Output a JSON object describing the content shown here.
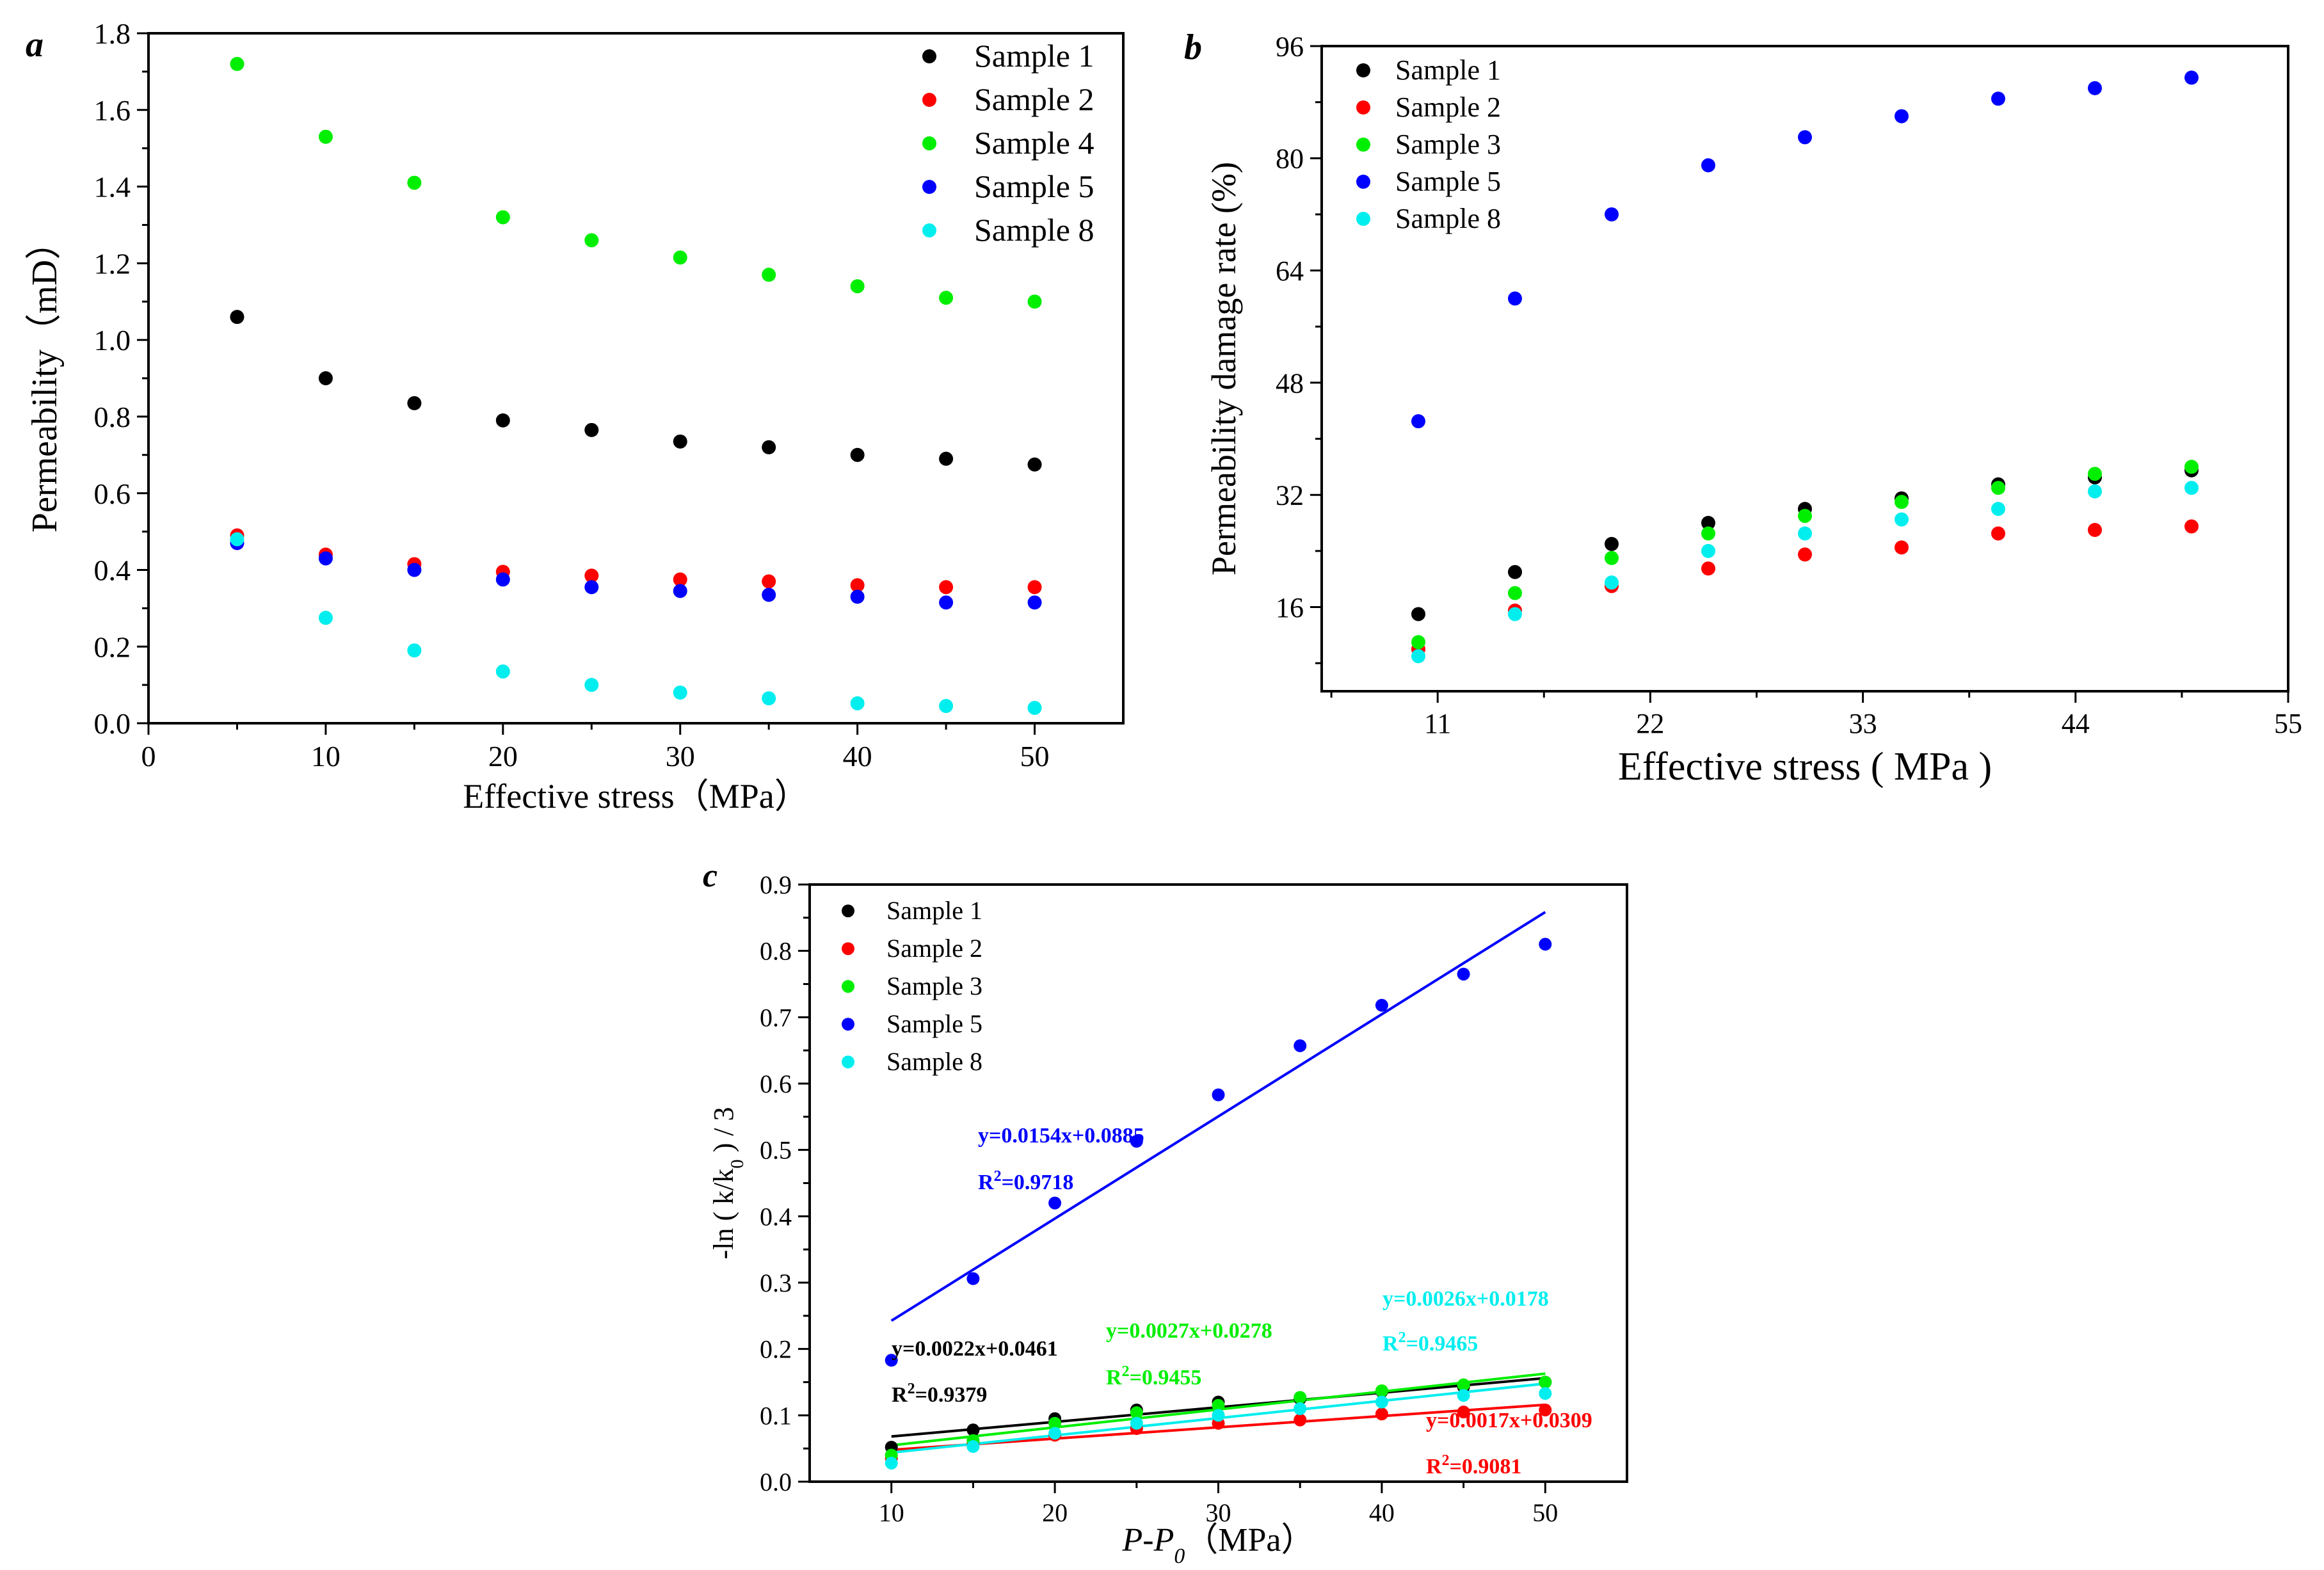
{
  "colors": {
    "Sample 1": "#000000",
    "Sample 2": "#ff0000",
    "Sample 3": "#00ee00",
    "Sample 4": "#00ee00",
    "Sample 5": "#0000ff",
    "Sample 8": "#00eeee"
  },
  "chart_data": [
    {
      "panel_label": "a",
      "type": "scatter",
      "xlabel": "Effective stress（MPa）",
      "ylabel": "Permeability（mD）",
      "xlim": [
        0,
        55
      ],
      "ylim": [
        0,
        1.8
      ],
      "xticks": [
        0,
        10,
        20,
        30,
        40,
        50
      ],
      "yticks": [
        "0.0",
        "0.2",
        "0.4",
        "0.6",
        "0.8",
        "1.0",
        "1.2",
        "1.4",
        "1.6",
        "1.8"
      ],
      "legend_position": "top-right",
      "x": [
        5,
        10,
        15,
        20,
        25,
        30,
        35,
        40,
        45,
        50
      ],
      "series": [
        {
          "name": "Sample 1",
          "values": [
            1.06,
            0.9,
            0.835,
            0.79,
            0.765,
            0.735,
            0.72,
            0.7,
            0.69,
            0.675
          ]
        },
        {
          "name": "Sample 2",
          "values": [
            0.49,
            0.44,
            0.415,
            0.395,
            0.385,
            0.375,
            0.37,
            0.36,
            0.355,
            0.355
          ]
        },
        {
          "name": "Sample 4",
          "values": [
            1.72,
            1.53,
            1.41,
            1.32,
            1.26,
            1.215,
            1.17,
            1.14,
            1.11,
            1.1
          ]
        },
        {
          "name": "Sample 5",
          "values": [
            0.47,
            0.43,
            0.4,
            0.375,
            0.355,
            0.345,
            0.335,
            0.33,
            0.315,
            0.315
          ]
        },
        {
          "name": "Sample 8",
          "values": [
            0.48,
            0.275,
            0.19,
            0.135,
            0.1,
            0.08,
            0.065,
            0.052,
            0.045,
            0.04
          ]
        }
      ]
    },
    {
      "panel_label": "b",
      "type": "scatter",
      "xlabel": "Effective stress ( MPa )",
      "ylabel": "Permeability damage rate (%)",
      "xlim": [
        5,
        55
      ],
      "ylim": [
        4,
        96
      ],
      "xticks": [
        11,
        22,
        33,
        44,
        55
      ],
      "yticks": [
        16,
        32,
        48,
        64,
        80,
        96
      ],
      "legend_position": "top-left",
      "x": [
        10,
        15,
        20,
        25,
        30,
        35,
        40,
        45,
        50
      ],
      "series": [
        {
          "name": "Sample 1",
          "values": [
            15,
            21,
            25,
            28,
            30,
            31.5,
            33.5,
            34.5,
            35.5
          ]
        },
        {
          "name": "Sample 2",
          "values": [
            10,
            15.5,
            19,
            21.5,
            23.5,
            24.5,
            26.5,
            27,
            27.5
          ]
        },
        {
          "name": "Sample 3",
          "values": [
            11,
            18,
            23,
            26.5,
            29,
            31,
            33,
            35,
            36
          ]
        },
        {
          "name": "Sample 5",
          "values": [
            42.5,
            60,
            72,
            79,
            83,
            86,
            88.5,
            90,
            91.5
          ]
        },
        {
          "name": "Sample 8",
          "values": [
            9,
            15,
            19.5,
            24,
            26.5,
            28.5,
            30,
            32.5,
            33
          ]
        }
      ]
    },
    {
      "panel_label": "c",
      "type": "scatter",
      "xlabel": "P-P0（MPa）",
      "ylabel": "-ln ( k/k0 ) / 3",
      "xlim": [
        5,
        55
      ],
      "ylim": [
        0,
        0.9
      ],
      "xticks": [
        10,
        20,
        30,
        40,
        50
      ],
      "yticks": [
        "0.0",
        "0.1",
        "0.2",
        "0.3",
        "0.4",
        "0.5",
        "0.6",
        "0.7",
        "0.8",
        "0.9"
      ],
      "legend_position": "top-left",
      "x": [
        10,
        15,
        20,
        25,
        30,
        35,
        40,
        45,
        50
      ],
      "series": [
        {
          "name": "Sample 1",
          "values": [
            0.052,
            0.078,
            0.095,
            0.108,
            0.12,
            0.125,
            0.136,
            0.143,
            0.15
          ],
          "fit": {
            "slope": 0.0022,
            "intercept": 0.0461,
            "equation": "y=0.0022x+0.0461",
            "r2": "0.9379"
          }
        },
        {
          "name": "Sample 2",
          "values": [
            0.035,
            0.058,
            0.07,
            0.08,
            0.088,
            0.093,
            0.102,
            0.105,
            0.108
          ],
          "fit": {
            "slope": 0.0017,
            "intercept": 0.0309,
            "equation": "y=0.0017x+0.0309",
            "r2": "0.9081"
          }
        },
        {
          "name": "Sample 3",
          "values": [
            0.04,
            0.062,
            0.088,
            0.104,
            0.115,
            0.127,
            0.137,
            0.146,
            0.15
          ],
          "fit": {
            "slope": 0.0027,
            "intercept": 0.0278,
            "equation": "y=0.0027x+0.0278",
            "r2": "0.9455"
          }
        },
        {
          "name": "Sample 5",
          "values": [
            0.183,
            0.306,
            0.42,
            0.513,
            0.583,
            0.657,
            0.718,
            0.765,
            0.81
          ],
          "fit": {
            "slope": 0.0154,
            "intercept": 0.0885,
            "equation": "y=0.0154x+0.0885",
            "r2": "0.9718"
          }
        },
        {
          "name": "Sample 8",
          "values": [
            0.028,
            0.053,
            0.073,
            0.088,
            0.1,
            0.11,
            0.12,
            0.13,
            0.133
          ],
          "fit": {
            "slope": 0.0026,
            "intercept": 0.0178,
            "equation": "y=0.0026x+0.0178",
            "r2": "0.9465"
          }
        }
      ]
    }
  ]
}
